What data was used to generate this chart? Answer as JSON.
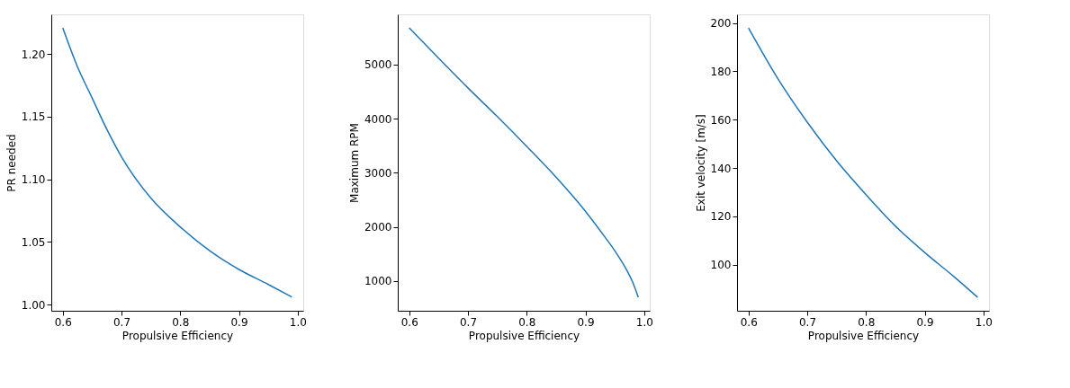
{
  "chart_data": [
    {
      "type": "line",
      "xlabel": "Propulsive Efficiency",
      "ylabel": "PR needed",
      "x": [
        0.6,
        0.625,
        0.65,
        0.675,
        0.7,
        0.75,
        0.8,
        0.85,
        0.9,
        0.95,
        0.99
      ],
      "series": [
        {
          "color": "#1f77b4",
          "values": [
            1.221,
            1.19,
            1.165,
            1.14,
            1.118,
            1.085,
            1.062,
            1.043,
            1.028,
            1.016,
            1.006
          ]
        }
      ],
      "xlim": [
        0.5805,
        1.0095
      ],
      "ylim": [
        0.995,
        1.2318
      ],
      "xticks": [
        {
          "value": 0.6,
          "label": "0.6"
        },
        {
          "value": 0.7,
          "label": "0.7"
        },
        {
          "value": 0.8,
          "label": "0.8"
        },
        {
          "value": 0.9,
          "label": "0.9"
        },
        {
          "value": 1.0,
          "label": "1.0"
        }
      ],
      "yticks": [
        {
          "value": 1.0,
          "label": "1.00"
        },
        {
          "value": 1.05,
          "label": "1.05"
        },
        {
          "value": 1.1,
          "label": "1.10"
        },
        {
          "value": 1.15,
          "label": "1.15"
        },
        {
          "value": 1.2,
          "label": "1.20"
        }
      ],
      "grid": false,
      "marker": "none",
      "line_style": "solid"
    },
    {
      "type": "line",
      "xlabel": "Propulsive Efficiency",
      "ylabel": "Maximum RPM",
      "x": [
        0.6,
        0.65,
        0.7,
        0.75,
        0.8,
        0.85,
        0.9,
        0.93,
        0.95,
        0.97,
        0.98,
        0.99
      ],
      "series": [
        {
          "color": "#1f77b4",
          "values": [
            5680,
            5120,
            4570,
            4040,
            3490,
            2920,
            2290,
            1860,
            1560,
            1210,
            990,
            700
          ]
        }
      ],
      "xlim": [
        0.5805,
        1.0095
      ],
      "ylim": [
        451,
        5929
      ],
      "xticks": [
        {
          "value": 0.6,
          "label": "0.6"
        },
        {
          "value": 0.7,
          "label": "0.7"
        },
        {
          "value": 0.8,
          "label": "0.8"
        },
        {
          "value": 0.9,
          "label": "0.9"
        },
        {
          "value": 1.0,
          "label": "1.0"
        }
      ],
      "yticks": [
        1000,
        2000,
        3000,
        4000,
        5000
      ],
      "grid": false,
      "marker": "none",
      "line_style": "solid"
    },
    {
      "type": "line",
      "xlabel": "Propulsive Efficiency",
      "ylabel": "Exit velocity [m/s]",
      "x": [
        0.6,
        0.65,
        0.7,
        0.75,
        0.8,
        0.85,
        0.9,
        0.95,
        0.99
      ],
      "series": [
        {
          "color": "#1f77b4",
          "values": [
            198,
            177,
            159,
            143,
            129,
            116,
            105,
            95,
            86.5
          ]
        }
      ],
      "xlim": [
        0.5805,
        1.0095
      ],
      "ylim": [
        80.9,
        203.6
      ],
      "xticks": [
        {
          "value": 0.6,
          "label": "0.6"
        },
        {
          "value": 0.7,
          "label": "0.7"
        },
        {
          "value": 0.8,
          "label": "0.8"
        },
        {
          "value": 0.9,
          "label": "0.9"
        },
        {
          "value": 1.0,
          "label": "1.0"
        }
      ],
      "yticks": [
        100,
        120,
        140,
        160,
        180,
        200
      ],
      "grid": false,
      "marker": "none",
      "line_style": "solid"
    }
  ]
}
